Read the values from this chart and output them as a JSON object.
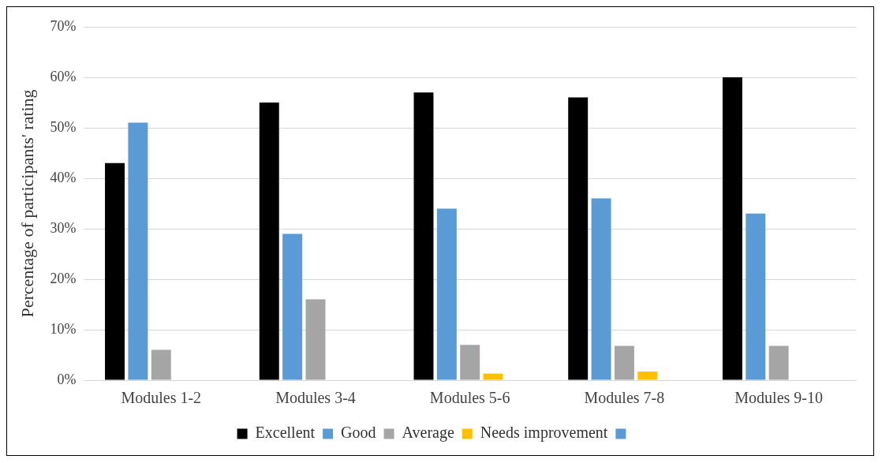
{
  "chart_data": {
    "type": "bar",
    "ylabel": "Percentage of participants' rating",
    "categories": [
      "Modules 1-2",
      "Modules 3-4",
      "Modules 5-6",
      "Modules 7-8",
      "Modules 9-10"
    ],
    "series": [
      {
        "name": "Excellent",
        "color": "#000000",
        "values": [
          43,
          55,
          57,
          56,
          60
        ]
      },
      {
        "name": "Good",
        "color": "#5b9bd5",
        "values": [
          51,
          29,
          34,
          36,
          33
        ]
      },
      {
        "name": "Average",
        "color": "#a5a5a5",
        "values": [
          6,
          16,
          7,
          6.8,
          6.8
        ]
      },
      {
        "name": "Needs improvement",
        "color": "#ffc000",
        "values": [
          null,
          null,
          1.3,
          1.7,
          null
        ]
      },
      {
        "color": "#5b9bd5",
        "values": [
          null,
          null,
          null,
          null,
          null
        ]
      }
    ],
    "ylim": [
      0,
      70
    ],
    "yticks": [
      {
        "value": 0,
        "label": "0%"
      },
      {
        "value": 10,
        "label": "10%"
      },
      {
        "value": 20,
        "label": "20%"
      },
      {
        "value": 30,
        "label": "30%"
      },
      {
        "value": 40,
        "label": "40%"
      },
      {
        "value": 50,
        "label": "50%"
      },
      {
        "value": 60,
        "label": "60%"
      },
      {
        "value": 70,
        "label": "70%"
      }
    ],
    "grid": "y",
    "legend": "bottom"
  }
}
